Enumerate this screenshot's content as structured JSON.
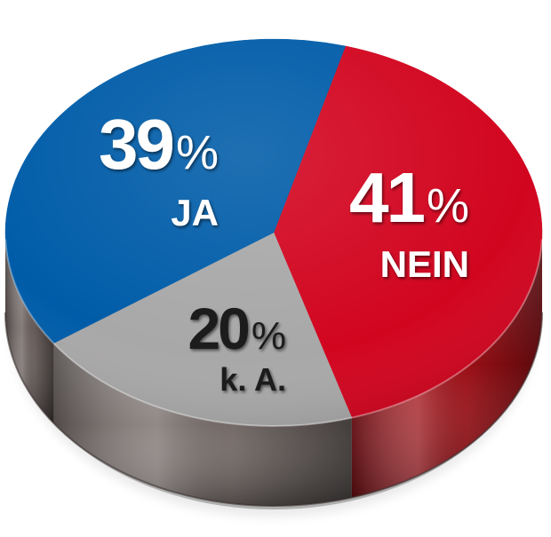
{
  "chart_data": {
    "type": "pie",
    "style": "3d",
    "slices": [
      {
        "label": "NEIN",
        "value": 41,
        "value_text": "41",
        "unit": "%",
        "color": "#d2051f",
        "side_color": "#a31017"
      },
      {
        "label": "k. A.",
        "value": 20,
        "value_text": "20",
        "unit": "%",
        "color": "#a9a8a8",
        "side_color": "#7a706d"
      },
      {
        "label": "JA",
        "value": 39,
        "value_text": "39",
        "unit": "%",
        "color": "#005ca8",
        "side_color": "#6b605d"
      }
    ],
    "title": "",
    "legend": "none",
    "labels_on_slices": true
  }
}
